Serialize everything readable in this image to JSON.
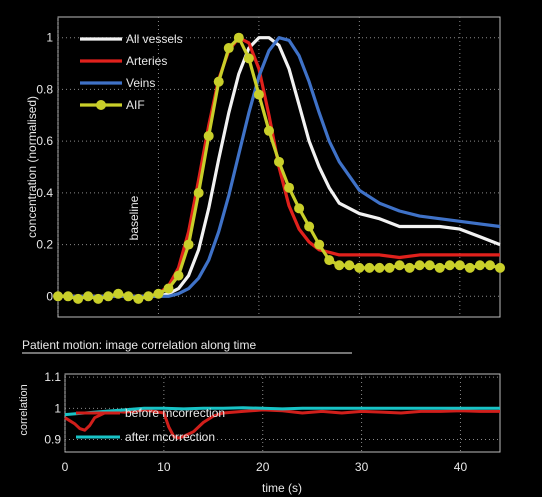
{
  "chart_data": [
    {
      "type": "line",
      "ylabel": "concentration (normalised)",
      "xlim": [
        0,
        44
      ],
      "ylim": [
        -0.08,
        1.08
      ],
      "yticks": [
        0,
        0.2,
        0.4,
        0.6,
        0.8,
        1
      ],
      "ytick_labels": [
        "0",
        "0.2",
        "0.4",
        "0.6",
        "0.8",
        "1"
      ],
      "grid": true,
      "legend": "top-left",
      "annotation": "baseline",
      "series": [
        {
          "name": "All vessels",
          "color": "#f2f2f2",
          "marker": "none",
          "x": [
            0,
            2,
            4,
            6,
            8,
            9,
            10,
            11,
            12,
            13,
            14,
            15,
            16,
            17,
            18,
            19,
            20,
            21,
            22,
            23,
            24,
            25,
            26,
            27,
            28,
            30,
            32,
            34,
            36,
            38,
            40,
            42,
            44
          ],
          "y": [
            0,
            0,
            0,
            0,
            0,
            0,
            0,
            0.01,
            0.03,
            0.08,
            0.18,
            0.34,
            0.53,
            0.71,
            0.86,
            0.96,
            1.0,
            1.0,
            0.97,
            0.88,
            0.74,
            0.6,
            0.5,
            0.42,
            0.36,
            0.32,
            0.3,
            0.27,
            0.27,
            0.27,
            0.26,
            0.23,
            0.2
          ]
        },
        {
          "name": "Arteries",
          "color": "#e0211c",
          "marker": "none",
          "x": [
            0,
            2,
            4,
            6,
            8,
            9,
            10,
            11,
            12,
            13,
            14,
            15,
            16,
            17,
            18,
            19,
            20,
            21,
            22,
            23,
            24,
            25,
            26,
            27,
            28,
            30,
            32,
            34,
            36,
            38,
            40,
            42,
            44
          ],
          "y": [
            0,
            0,
            0,
            0,
            0,
            0,
            0.01,
            0.04,
            0.11,
            0.25,
            0.45,
            0.66,
            0.84,
            0.95,
            1.0,
            0.98,
            0.88,
            0.7,
            0.5,
            0.35,
            0.26,
            0.21,
            0.18,
            0.17,
            0.16,
            0.16,
            0.16,
            0.15,
            0.16,
            0.16,
            0.16,
            0.16,
            0.16
          ]
        },
        {
          "name": "Veins",
          "color": "#3f72c8",
          "marker": "none",
          "x": [
            0,
            2,
            4,
            6,
            8,
            9,
            10,
            11,
            12,
            13,
            14,
            15,
            16,
            17,
            18,
            19,
            20,
            21,
            22,
            23,
            24,
            25,
            26,
            27,
            28,
            30,
            32,
            34,
            36,
            38,
            40,
            42,
            44
          ],
          "y": [
            0,
            0,
            0,
            0,
            0,
            0,
            0,
            0,
            0.01,
            0.03,
            0.07,
            0.14,
            0.25,
            0.39,
            0.55,
            0.71,
            0.85,
            0.95,
            1.0,
            0.99,
            0.93,
            0.83,
            0.71,
            0.6,
            0.52,
            0.41,
            0.36,
            0.33,
            0.31,
            0.3,
            0.29,
            0.28,
            0.27
          ]
        },
        {
          "name": "AIF",
          "color": "#c9cf2a",
          "marker": "circle",
          "x": [
            0,
            1,
            2,
            3,
            4,
            5,
            6,
            7,
            8,
            9,
            10,
            11,
            12,
            13,
            14,
            15,
            16,
            17,
            18,
            19,
            20,
            21,
            22,
            23,
            24,
            25,
            26,
            27,
            28,
            29,
            30,
            31,
            32,
            33,
            34,
            35,
            36,
            37,
            38,
            39,
            40,
            41,
            42,
            43,
            44
          ],
          "y": [
            0,
            0,
            -0.01,
            0,
            -0.01,
            0,
            0.01,
            0,
            -0.01,
            0,
            0.01,
            0.03,
            0.08,
            0.2,
            0.4,
            0.62,
            0.83,
            0.96,
            1.0,
            0.92,
            0.78,
            0.64,
            0.52,
            0.42,
            0.34,
            0.27,
            0.2,
            0.14,
            0.12,
            0.12,
            0.11,
            0.11,
            0.11,
            0.11,
            0.12,
            0.11,
            0.12,
            0.12,
            0.11,
            0.12,
            0.12,
            0.11,
            0.12,
            0.12,
            0.11
          ]
        }
      ]
    },
    {
      "type": "line",
      "title": "Patient motion: image correlation along time",
      "xlabel": "time (s)",
      "ylabel": "correlation",
      "xlim": [
        0,
        44
      ],
      "ylim": [
        0.86,
        1.11
      ],
      "xticks": [
        0,
        10,
        20,
        30,
        40
      ],
      "xtick_labels": [
        "0",
        "10",
        "20",
        "30",
        "40"
      ],
      "yticks": [
        0.9,
        1,
        1.1
      ],
      "ytick_labels": [
        "0.9",
        "1",
        "1.1"
      ],
      "grid": true,
      "legend": "bottom-left",
      "series": [
        {
          "name": "before mcorrection",
          "color": "#d01f1b",
          "marker": "none",
          "x": [
            0,
            0.5,
            1,
            1.5,
            2,
            2.5,
            3,
            4,
            5,
            6,
            7,
            8,
            9,
            10,
            10.5,
            11,
            11.5,
            12,
            13,
            14,
            15,
            16,
            18,
            20,
            22,
            24,
            26,
            28,
            30,
            32,
            34,
            36,
            38,
            40,
            42,
            44
          ],
          "y": [
            0.97,
            0.96,
            0.95,
            0.935,
            0.93,
            0.945,
            0.97,
            0.985,
            0.99,
            0.988,
            0.99,
            0.995,
            0.99,
            0.985,
            0.94,
            0.91,
            0.905,
            0.91,
            0.925,
            0.955,
            0.975,
            0.985,
            0.99,
            0.995,
            0.992,
            0.985,
            0.99,
            0.985,
            0.99,
            0.988,
            0.985,
            0.99,
            0.99,
            0.992,
            0.99,
            0.99
          ]
        },
        {
          "name": "after mcorrection",
          "color": "#18c3c6",
          "marker": "none",
          "x": [
            0,
            2,
            4,
            6,
            8,
            10,
            12,
            14,
            16,
            18,
            20,
            22,
            24,
            26,
            28,
            30,
            32,
            34,
            36,
            38,
            40,
            42,
            44
          ],
          "y": [
            0.98,
            0.985,
            0.99,
            0.995,
            1.0,
            1.0,
            0.998,
            1.0,
            1.0,
            1.002,
            1.0,
            0.998,
            1.0,
            1.0,
            1.0,
            1.0,
            1.0,
            1.0,
            1.0,
            1.0,
            1.0,
            1.0,
            1.0
          ]
        }
      ]
    }
  ]
}
